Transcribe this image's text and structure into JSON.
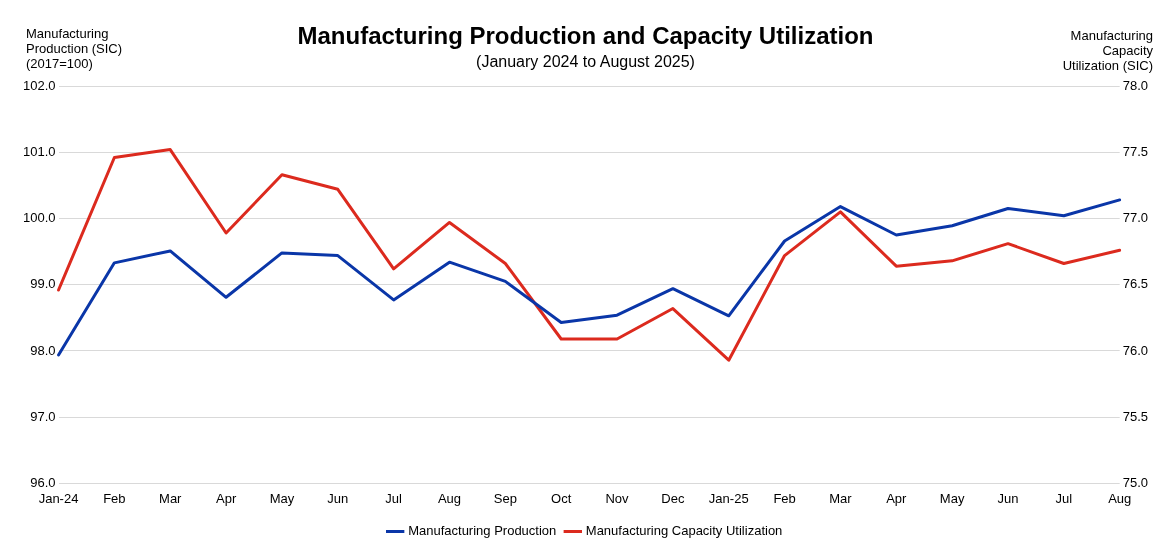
{
  "chart_data": {
    "type": "line",
    "title": "Manufacturing Production and Capacity Utilization",
    "subtitle": "(January 2024 to August 2025)",
    "ylabel": "Manufacturing Production (SIC) (2017=100)",
    "y2label": "Manufacturing Capacity Utilization (SIC)",
    "categories": [
      "Jan-24",
      "Feb",
      "Mar",
      "Apr",
      "May",
      "Jun",
      "Jul",
      "Aug",
      "Sep",
      "Oct",
      "Nov",
      "Dec",
      "Jan-25",
      "Feb",
      "Mar",
      "Apr",
      "May",
      "Jun",
      "Jul",
      "Aug"
    ],
    "series": [
      {
        "name": "Manufacturing Production",
        "color": "#0a36a8",
        "values": [
          97.94,
          99.33,
          99.51,
          98.81,
          99.48,
          99.44,
          98.77,
          99.34,
          99.05,
          98.43,
          98.54,
          98.94,
          98.53,
          99.66,
          100.18,
          99.75,
          99.89,
          100.15,
          100.04,
          100.28
        ]
      },
      {
        "name": "Manufacturing Capacity Utilization",
        "color": "#dc2a1e",
        "axis": "y2",
        "values": [
          76.46,
          77.46,
          77.52,
          76.89,
          77.33,
          77.22,
          76.62,
          76.97,
          76.66,
          76.09,
          76.09,
          76.32,
          75.93,
          76.72,
          77.05,
          76.64,
          76.68,
          76.81,
          76.66,
          76.76
        ]
      }
    ],
    "ylim": [
      96,
      102
    ],
    "yticks": [
      {
        "value": 96,
        "label": "96.0"
      },
      {
        "value": 97,
        "label": "97.0"
      },
      {
        "value": 98,
        "label": "98.0"
      },
      {
        "value": 99,
        "label": "99.0"
      },
      {
        "value": 100,
        "label": "100.0"
      },
      {
        "value": 101,
        "label": "101.0"
      },
      {
        "value": 102,
        "label": "102.0"
      }
    ],
    "y2lim": [
      75,
      78
    ],
    "y2ticks": [
      {
        "value": 75,
        "label": "75.0"
      },
      {
        "value": 75.5,
        "label": "75.5"
      },
      {
        "value": 76,
        "label": "76.0"
      },
      {
        "value": 76.5,
        "label": "76.5"
      },
      {
        "value": 77,
        "label": "77.0"
      },
      {
        "value": 77.5,
        "label": "77.5"
      },
      {
        "value": 78,
        "label": "78.0"
      }
    ],
    "grid": "y",
    "legend": "bottom",
    "marker": "none",
    "line_style": "solid"
  }
}
